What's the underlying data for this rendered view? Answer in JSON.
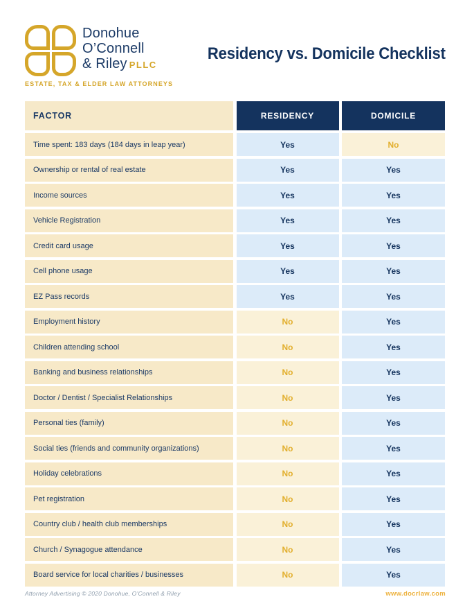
{
  "brand": {
    "name_line1": "Donohue",
    "name_line2": "O’Connell",
    "name_line3": "& Riley",
    "name_suffix": "PLLC",
    "tagline": "ESTATE, TAX & ELDER LAW ATTORNEYS"
  },
  "page_title": "Residency vs. Domicile Checklist",
  "table": {
    "headers": [
      "FACTOR",
      "RESIDENCY",
      "DOMICILE"
    ],
    "rows": [
      {
        "factor": "Time spent: 183 days (184 days in leap year)",
        "residency": "Yes",
        "domicile": "No"
      },
      {
        "factor": "Ownership or rental of real estate",
        "residency": "Yes",
        "domicile": "Yes"
      },
      {
        "factor": "Income sources",
        "residency": "Yes",
        "domicile": "Yes"
      },
      {
        "factor": "Vehicle Registration",
        "residency": "Yes",
        "domicile": "Yes"
      },
      {
        "factor": "Credit card usage",
        "residency": "Yes",
        "domicile": "Yes"
      },
      {
        "factor": "Cell phone usage",
        "residency": "Yes",
        "domicile": "Yes"
      },
      {
        "factor": "EZ Pass records",
        "residency": "Yes",
        "domicile": "Yes"
      },
      {
        "factor": "Employment history",
        "residency": "No",
        "domicile": "Yes"
      },
      {
        "factor": "Children attending school",
        "residency": "No",
        "domicile": "Yes"
      },
      {
        "factor": "Banking and business relationships",
        "residency": "No",
        "domicile": "Yes"
      },
      {
        "factor": "Doctor / Dentist / Specialist Relationships",
        "residency": "No",
        "domicile": "Yes"
      },
      {
        "factor": "Personal ties (family)",
        "residency": "No",
        "domicile": "Yes"
      },
      {
        "factor": "Social ties (friends and community organizations)",
        "residency": "No",
        "domicile": "Yes"
      },
      {
        "factor": "Holiday celebrations",
        "residency": "No",
        "domicile": "Yes"
      },
      {
        "factor": "Pet registration",
        "residency": "No",
        "domicile": "Yes"
      },
      {
        "factor": "Country club / health club memberships",
        "residency": "No",
        "domicile": "Yes"
      },
      {
        "factor": "Church / Synagogue attendance",
        "residency": "No",
        "domicile": "Yes"
      },
      {
        "factor": "Board service for local charities / businesses",
        "residency": "No",
        "domicile": "Yes"
      }
    ]
  },
  "footer": {
    "left": "Attorney Advertising © 2020 Donohue, O’Connell & Riley",
    "right": "www.docrlaw.com"
  },
  "colors": {
    "navy": "#14335E",
    "gold": "#D5A62A",
    "cream_factor": "#F7E9C8",
    "cream_no": "#FAF1D8",
    "blue_yes": "#DCEBF9",
    "no_text_gold": "#E2AF2E",
    "footer_gray": "#8E9DAC",
    "url_gold": "#EDB23F"
  }
}
